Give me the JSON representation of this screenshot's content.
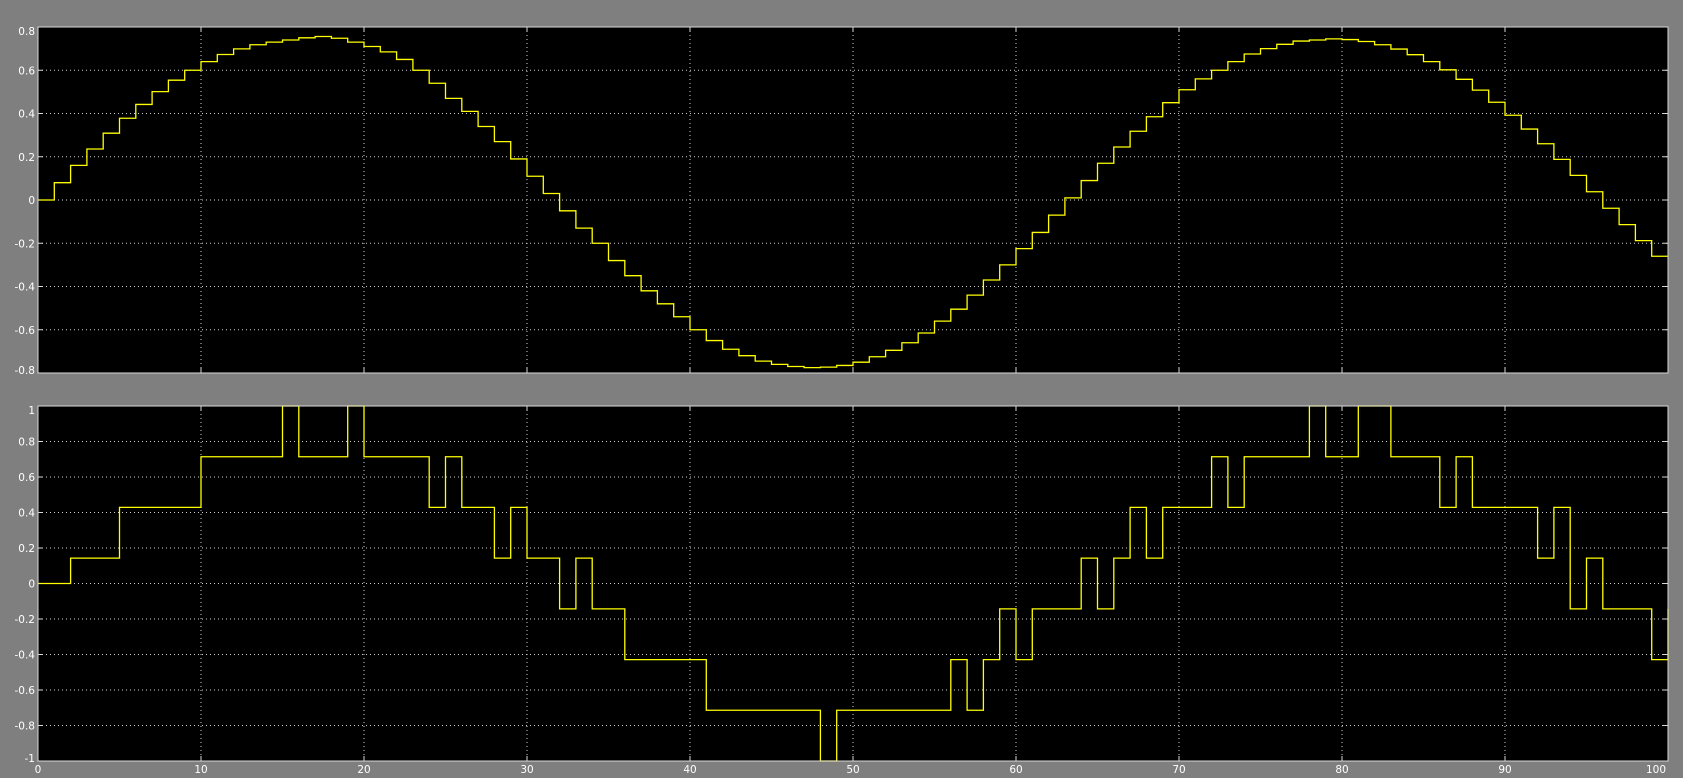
{
  "colors": {
    "window_background": "#7f7f7f",
    "axes_background": "#000000",
    "axes_border": "#d8d8d8",
    "grid": "#d0d0d0",
    "trace": "#ffff00"
  },
  "chart_data": [
    {
      "type": "line",
      "line_style": "stairs",
      "title": "",
      "xlabel": "",
      "ylabel": "",
      "xlim": [
        0,
        100
      ],
      "ylim": [
        -0.8,
        0.8
      ],
      "grid": true,
      "xticks": [
        0,
        10,
        20,
        30,
        40,
        50,
        60,
        70,
        80,
        90,
        100
      ],
      "yticks": [
        -0.8,
        -0.6,
        -0.4,
        -0.2,
        0,
        0.2,
        0.4,
        0.6,
        0.8
      ],
      "xtick_labels": [
        "0",
        "10",
        "20",
        "30",
        "40",
        "50",
        "60",
        "70",
        "80",
        "90",
        "100"
      ],
      "ytick_labels": [
        "-0.8",
        "-0.6",
        "-0.4",
        "-0.2",
        "0",
        "0.2",
        "0.4",
        "0.6",
        "0.8"
      ],
      "series": [
        {
          "x": [
            0,
            1,
            2,
            3,
            4,
            5,
            6,
            7,
            8,
            9,
            10,
            11,
            12,
            13,
            14,
            15,
            16,
            17,
            18,
            19,
            20,
            21,
            22,
            23,
            24,
            25,
            26,
            27,
            28,
            29,
            30,
            31,
            32,
            33,
            34,
            35,
            36,
            37,
            38,
            39,
            40,
            41,
            42,
            43,
            44,
            45,
            46,
            47,
            48,
            49,
            50,
            51,
            52,
            53,
            54,
            55,
            56,
            57,
            58,
            59,
            60,
            61,
            62,
            63,
            64,
            65,
            66,
            67,
            68,
            69,
            70,
            71,
            72,
            73,
            74,
            75,
            76,
            77,
            78,
            79,
            80,
            81,
            82,
            83,
            84,
            85,
            86,
            87,
            88,
            89,
            90,
            91,
            92,
            93,
            94,
            95,
            96,
            97,
            98,
            99
          ],
          "y": [
            0,
            0.08,
            0.16,
            0.236,
            0.309,
            0.378,
            0.442,
            0.501,
            0.554,
            0.6,
            0.64,
            0.673,
            0.699,
            0.718,
            0.73,
            0.74,
            0.75,
            0.756,
            0.748,
            0.73,
            0.71,
            0.685,
            0.65,
            0.6,
            0.54,
            0.47,
            0.41,
            0.34,
            0.27,
            0.19,
            0.11,
            0.03,
            -0.05,
            -0.13,
            -0.2,
            -0.28,
            -0.35,
            -0.42,
            -0.48,
            -0.54,
            -0.6,
            -0.65,
            -0.69,
            -0.72,
            -0.745,
            -0.76,
            -0.77,
            -0.775,
            -0.773,
            -0.765,
            -0.75,
            -0.725,
            -0.695,
            -0.66,
            -0.615,
            -0.56,
            -0.505,
            -0.44,
            -0.37,
            -0.3,
            -0.225,
            -0.15,
            -0.07,
            0.01,
            0.09,
            0.17,
            0.245,
            0.318,
            0.385,
            0.45,
            0.51,
            0.56,
            0.6,
            0.64,
            0.675,
            0.7,
            0.72,
            0.735,
            0.74,
            0.745,
            0.742,
            0.733,
            0.718,
            0.698,
            0.672,
            0.64,
            0.602,
            0.558,
            0.508,
            0.452,
            0.392,
            0.328,
            0.26,
            0.188,
            0.114,
            0.038,
            -0.038,
            -0.114,
            -0.188,
            -0.26
          ]
        }
      ]
    },
    {
      "type": "line",
      "line_style": "stairs",
      "title": "",
      "xlabel": "",
      "ylabel": "",
      "xlim": [
        0,
        100
      ],
      "ylim": [
        -1,
        1
      ],
      "grid": true,
      "xticks": [
        0,
        10,
        20,
        30,
        40,
        50,
        60,
        70,
        80,
        90,
        100
      ],
      "yticks": [
        -1,
        -0.8,
        -0.6,
        -0.4,
        -0.2,
        0,
        0.2,
        0.4,
        0.6,
        0.8,
        1
      ],
      "xtick_labels": [
        "0",
        "10",
        "20",
        "30",
        "40",
        "50",
        "60",
        "70",
        "80",
        "90",
        "100"
      ],
      "ytick_labels": [
        "-1",
        "-0.8",
        "-0.6",
        "-0.4",
        "-0.2",
        "0",
        "0.2",
        "0.4",
        "0.6",
        "0.8",
        "1"
      ],
      "series": [
        {
          "x": [
            0,
            2,
            5,
            10,
            15,
            16,
            19,
            20,
            24,
            25,
            26,
            28,
            29,
            30,
            32,
            33,
            34,
            36,
            41,
            48,
            49,
            56,
            57,
            58,
            59,
            60,
            61,
            64,
            65,
            66,
            67,
            68,
            69,
            70,
            72,
            73,
            74,
            78,
            79,
            81,
            82,
            83,
            86,
            87,
            88,
            92,
            93,
            94,
            95,
            96,
            99,
            100
          ],
          "y": [
            0,
            0.143,
            0.429,
            0.714,
            1,
            0.714,
            1,
            0.714,
            0.429,
            0.714,
            0.429,
            0.143,
            0.429,
            0.143,
            -0.143,
            0.143,
            -0.143,
            -0.429,
            -0.714,
            -1,
            -0.714,
            -0.429,
            -0.714,
            -0.429,
            -0.143,
            -0.429,
            -0.143,
            0.143,
            -0.143,
            0.143,
            0.429,
            0.143,
            0.429,
            0.429,
            0.714,
            0.429,
            0.714,
            1,
            0.714,
            1,
            1,
            0.714,
            0.429,
            0.714,
            0.429,
            0.143,
            0.429,
            -0.143,
            0.143,
            -0.143,
            -0.429,
            -0.143
          ]
        }
      ]
    }
  ]
}
